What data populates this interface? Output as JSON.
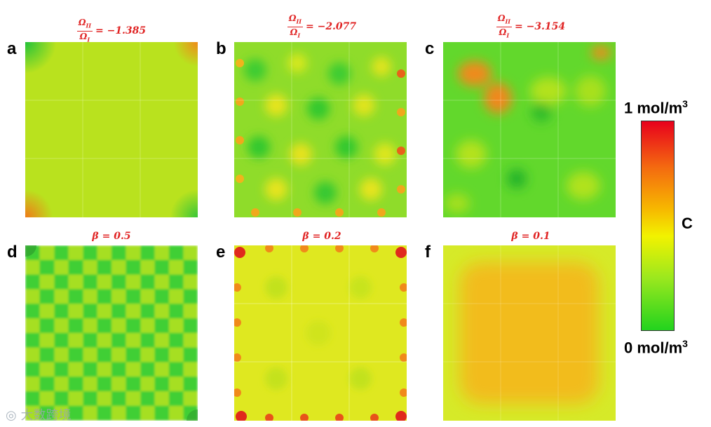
{
  "panels": [
    {
      "id": "a",
      "title_expr": "= −1.385",
      "num": "Ω",
      "num_sub": "II",
      "den": "Ω",
      "den_sub": "I"
    },
    {
      "id": "b",
      "title_expr": "= −2.077",
      "num": "Ω",
      "num_sub": "II",
      "den": "Ω",
      "den_sub": "I"
    },
    {
      "id": "c",
      "title_expr": "= −3.154",
      "num": "Ω",
      "num_sub": "II",
      "den": "Ω",
      "den_sub": "I"
    },
    {
      "id": "d",
      "title_expr": "β = 0.5"
    },
    {
      "id": "e",
      "title_expr": "β = 0.2"
    },
    {
      "id": "f",
      "title_expr": "β = 0.1"
    }
  ],
  "colorbar": {
    "max_label": "1 mol/m",
    "min_label": "0 mol/m",
    "unit_exp": "3",
    "var_label": "C",
    "colors": [
      "#e8001c",
      "#f46a10",
      "#f7b800",
      "#f2f200",
      "#9be81e",
      "#22d31e"
    ]
  },
  "watermark": "大数跨境"
}
